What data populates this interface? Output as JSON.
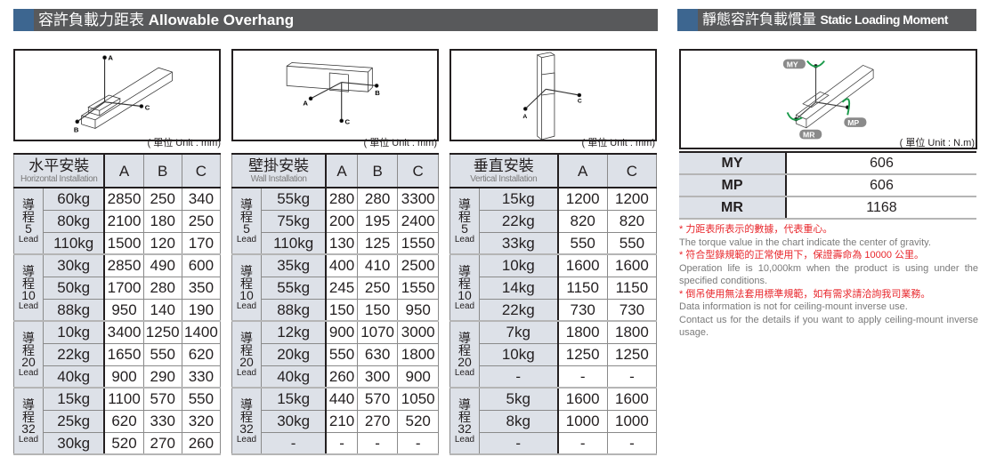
{
  "overhang": {
    "title_zh": "容許負載力距表",
    "title_en": "Allowable Overhang",
    "unit": "( 單位 Unit : mm)",
    "tables": [
      {
        "name_zh": "水平安裝",
        "name_en": "Horizontal Installation",
        "cols": [
          "A",
          "B",
          "C"
        ],
        "groups": [
          {
            "lead": "5",
            "rows": [
              [
                "60kg",
                "2850",
                "250",
                "340"
              ],
              [
                "80kg",
                "2100",
                "180",
                "250"
              ],
              [
                "110kg",
                "1500",
                "120",
                "170"
              ]
            ]
          },
          {
            "lead": "10",
            "rows": [
              [
                "30kg",
                "2850",
                "490",
                "600"
              ],
              [
                "50kg",
                "1700",
                "280",
                "350"
              ],
              [
                "88kg",
                "950",
                "140",
                "190"
              ]
            ]
          },
          {
            "lead": "20",
            "rows": [
              [
                "10kg",
                "3400",
                "1250",
                "1400"
              ],
              [
                "22kg",
                "1650",
                "550",
                "620"
              ],
              [
                "40kg",
                "900",
                "290",
                "330"
              ]
            ]
          },
          {
            "lead": "32",
            "rows": [
              [
                "15kg",
                "1100",
                "570",
                "550"
              ],
              [
                "25kg",
                "620",
                "330",
                "320"
              ],
              [
                "30kg",
                "520",
                "270",
                "260"
              ]
            ]
          }
        ]
      },
      {
        "name_zh": "壁掛安裝",
        "name_en": "Wall Installation",
        "cols": [
          "A",
          "B",
          "C"
        ],
        "groups": [
          {
            "lead": "5",
            "rows": [
              [
                "55kg",
                "280",
                "280",
                "3300"
              ],
              [
                "75kg",
                "200",
                "195",
                "2400"
              ],
              [
                "110kg",
                "130",
                "125",
                "1550"
              ]
            ]
          },
          {
            "lead": "10",
            "rows": [
              [
                "35kg",
                "400",
                "410",
                "2500"
              ],
              [
                "55kg",
                "245",
                "250",
                "1550"
              ],
              [
                "88kg",
                "150",
                "150",
                "950"
              ]
            ]
          },
          {
            "lead": "20",
            "rows": [
              [
                "12kg",
                "900",
                "1070",
                "3000"
              ],
              [
                "20kg",
                "550",
                "630",
                "1800"
              ],
              [
                "40kg",
                "260",
                "300",
                "900"
              ]
            ]
          },
          {
            "lead": "32",
            "rows": [
              [
                "15kg",
                "440",
                "570",
                "1050"
              ],
              [
                "30kg",
                "210",
                "270",
                "520"
              ],
              [
                "-",
                "-",
                "-",
                "-"
              ]
            ]
          }
        ]
      },
      {
        "name_zh": "垂直安裝",
        "name_en": "Vertical Installation",
        "cols": [
          "A",
          "C"
        ],
        "groups": [
          {
            "lead": "5",
            "rows": [
              [
                "15kg",
                "1200",
                "1200"
              ],
              [
                "22kg",
                "820",
                "820"
              ],
              [
                "33kg",
                "550",
                "550"
              ]
            ]
          },
          {
            "lead": "10",
            "rows": [
              [
                "10kg",
                "1600",
                "1600"
              ],
              [
                "14kg",
                "1150",
                "1150"
              ],
              [
                "22kg",
                "730",
                "730"
              ]
            ]
          },
          {
            "lead": "20",
            "rows": [
              [
                "7kg",
                "1800",
                "1800"
              ],
              [
                "10kg",
                "1250",
                "1250"
              ],
              [
                "-",
                "-",
                "-"
              ]
            ]
          },
          {
            "lead": "32",
            "rows": [
              [
                "5kg",
                "1600",
                "1600"
              ],
              [
                "8kg",
                "1000",
                "1000"
              ],
              [
                "-",
                "-",
                "-"
              ]
            ]
          }
        ]
      }
    ],
    "lead_zh": "導程",
    "lead_en": "Lead",
    "diagram_labels": [
      "A",
      "B",
      "C"
    ]
  },
  "moment": {
    "title_zh": "靜態容許負載慣量",
    "title_en": "Static Loading Moment",
    "unit": "( 單位 Unit : N.m)",
    "diagram_labels": [
      "MY",
      "MP",
      "MR"
    ],
    "rows": [
      {
        "k": "MY",
        "v": "606"
      },
      {
        "k": "MP",
        "v": "606"
      },
      {
        "k": "MR",
        "v": "1168"
      }
    ],
    "notes": [
      {
        "t": "* 力距表所表示的數據，代表重心。",
        "red": true
      },
      {
        "t": "The torque value in the chart indicate the center of gravity.",
        "red": false
      },
      {
        "t": "* 符合型錄規範的正常使用下，保證壽命為 10000 公里。",
        "red": true
      },
      {
        "t": "Operation life is 10,000km when the product is using under the specified conditions.",
        "red": false
      },
      {
        "t": "* 倒吊使用無法套用標準規範，如有需求請洽詢我司業務。",
        "red": true
      },
      {
        "t": "Data information is not for ceiling-mount inverse use.",
        "red": false
      },
      {
        "t": "Contact us for the details if you want to apply ceiling-mount inverse usage.",
        "red": false
      }
    ],
    "colors": {
      "arrow": "#1a9a4a",
      "header": "#58595b",
      "accent": "#3d6690",
      "red": "#e8262b"
    }
  }
}
